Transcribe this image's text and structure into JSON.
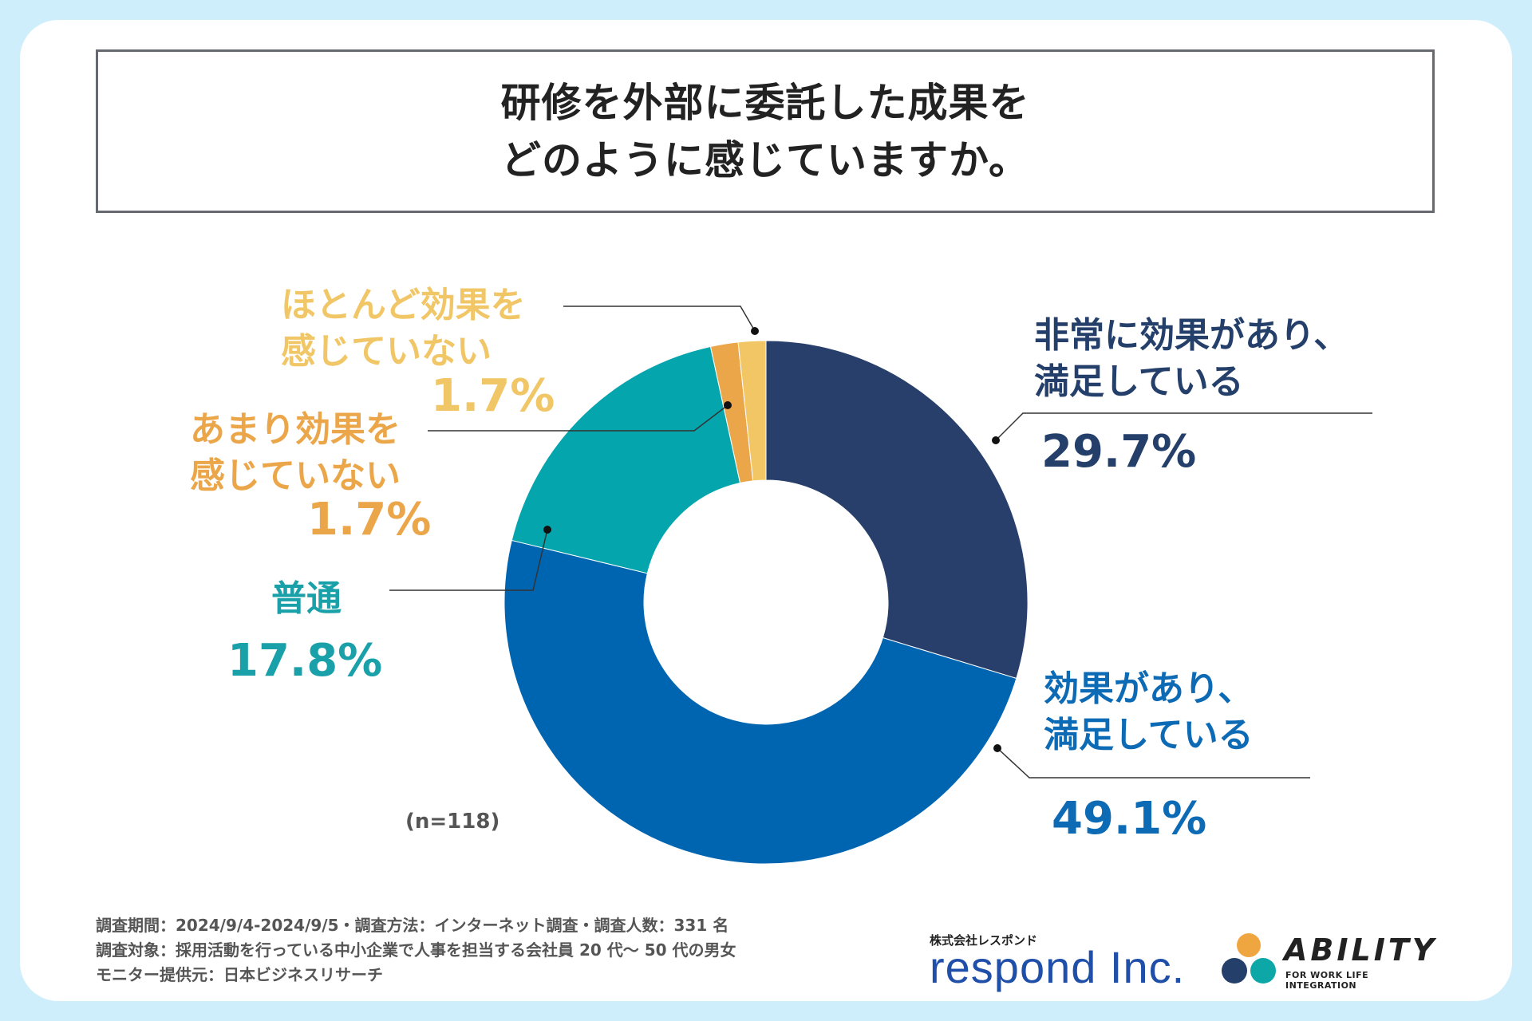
{
  "title": {
    "line1": "研修を外部に委託した成果を",
    "line2": "どのように感じていますか。"
  },
  "chart_data": {
    "type": "pie",
    "variant": "donut",
    "title": "研修を外部に委託した成果をどのように感じていますか。",
    "sample_size": "(n=118)",
    "unit": "%",
    "slices": [
      {
        "label_line1": "非常に効果があり、",
        "label_line2": "満足している",
        "value": 29.7,
        "value_label": "29.7%",
        "color": "#273f6a"
      },
      {
        "label_line1": "効果があり、",
        "label_line2": "満足している",
        "value": 49.1,
        "value_label": "49.1%",
        "color": "#0065b1"
      },
      {
        "label_line1": "普通",
        "label_line2": "",
        "value": 17.8,
        "value_label": "17.8%",
        "color": "#04a5ad"
      },
      {
        "label_line1": "あまり効果を",
        "label_line2": "感じていない",
        "value": 1.7,
        "value_label": "1.7%",
        "color": "#eca64a"
      },
      {
        "label_line1": "ほとんど効果を",
        "label_line2": "感じていない",
        "value": 1.7,
        "value_label": "1.7%",
        "color": "#f2c664"
      }
    ]
  },
  "footnotes": {
    "line1": "調査期間：2024/9/4-2024/9/5・調査方法：インターネット調査・調査人数：331 名",
    "line2": "調査対象：採用活動を行っている中小企業で人事を担当する会社員 20 代～ 50 代の男女",
    "line3": "モニター提供元：日本ビジネスリサーチ"
  },
  "logos": {
    "respond_sub": "株式会社レスポンド",
    "respond_main": "respond Inc.",
    "ability_main": "ABILITY",
    "ability_sub": "FOR WORK LIFE INTEGRATION",
    "ability_colors": [
      "#f0a640",
      "#253f6b",
      "#0ea7a8"
    ]
  },
  "colors": {
    "background": "#cfeefc",
    "card": "#ffffff",
    "title_border": "#666a70"
  }
}
